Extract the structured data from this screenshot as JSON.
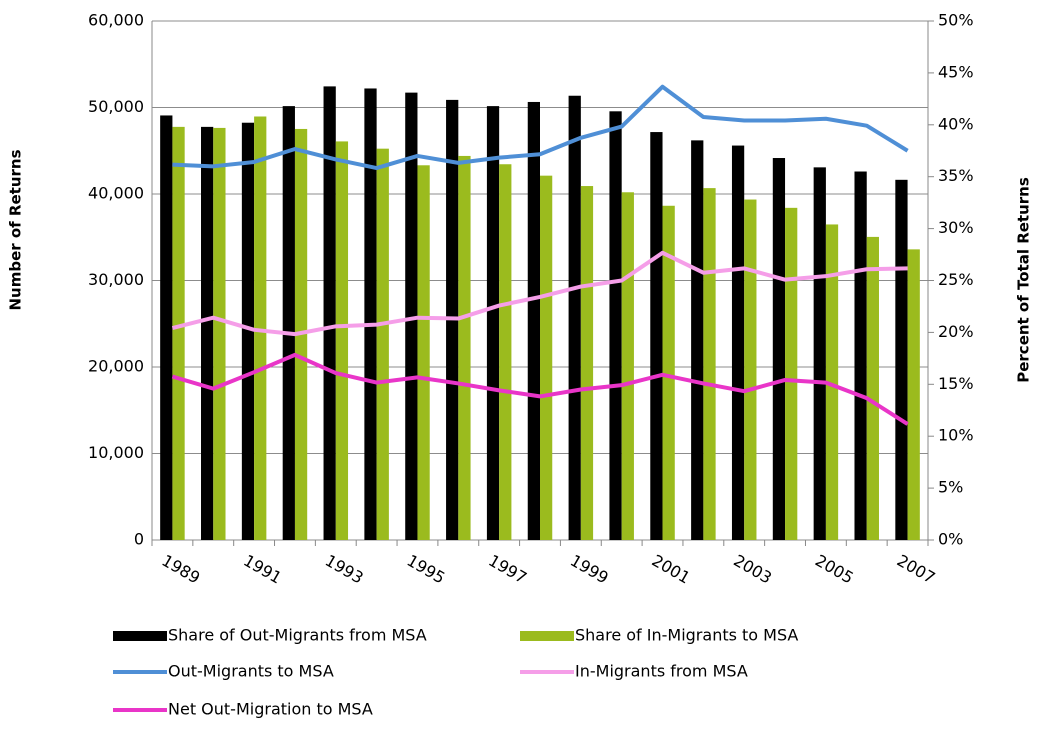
{
  "chart_data": {
    "type": "bar_line",
    "y_label": "Number of Returns",
    "y2_label": "Percent of Total Returns",
    "categories": [
      "1989",
      null,
      "1991",
      null,
      "1993",
      null,
      "1995",
      null,
      "1997",
      null,
      "1999",
      null,
      "2001",
      null,
      "2003",
      null,
      "2005",
      null,
      "2007"
    ],
    "series": [
      {
        "name": "Share of Out-Migrants from MSA",
        "type": "bar",
        "axis": "y2",
        "color": "#000000",
        "values": [
          40.9,
          39.8,
          40.2,
          41.8,
          43.7,
          43.5,
          43.1,
          42.4,
          41.8,
          42.2,
          42.8,
          41.3,
          39.3,
          38.5,
          38.0,
          36.8,
          35.9,
          35.5,
          34.7
        ]
      },
      {
        "name": "Share of In-Migrants to MSA",
        "type": "bar",
        "axis": "y2",
        "color": "#9bbb1e",
        "values": [
          39.8,
          39.7,
          40.8,
          39.6,
          38.4,
          37.7,
          36.1,
          37.0,
          36.2,
          35.1,
          34.1,
          33.5,
          32.2,
          33.9,
          32.8,
          32.0,
          30.4,
          29.2,
          28.0
        ]
      },
      {
        "name": "Out-Migrants to MSA",
        "type": "line",
        "color": "#4f8fd6",
        "values": [
          43400,
          43200,
          43700,
          45200,
          44000,
          43000,
          44400,
          43600,
          44200,
          44600,
          46500,
          47800,
          52400,
          48900,
          48500,
          48500,
          48700,
          47900,
          45000
        ]
      },
      {
        "name": "In-Migrants from MSA",
        "type": "line",
        "color": "#f59ee8",
        "values": [
          24500,
          25700,
          24300,
          23800,
          24700,
          24900,
          25700,
          25600,
          27100,
          28100,
          29300,
          30000,
          33200,
          30900,
          31400,
          30100,
          30500,
          31300,
          31400
        ]
      },
      {
        "name": "Net Out-Migration to MSA",
        "type": "line",
        "color": "#e935c8",
        "values": [
          18900,
          17500,
          19400,
          21400,
          19300,
          18200,
          18800,
          18100,
          17300,
          16600,
          17400,
          17900,
          19100,
          18100,
          17200,
          18500,
          18200,
          16400,
          13400
        ]
      }
    ],
    "ylim": [
      0,
      60000
    ],
    "yticks": [
      0,
      {
        "value": 10000,
        "label": "10,000"
      },
      {
        "value": 20000,
        "label": "20,000"
      },
      {
        "value": 30000,
        "label": "30,000"
      },
      {
        "value": 40000,
        "label": "40,000"
      },
      {
        "value": 50000,
        "label": "50,000"
      },
      {
        "value": 60000,
        "label": "60,000"
      }
    ],
    "y2lim": [
      0,
      50
    ],
    "y2ticks": [
      {
        "value": 0,
        "label": "0%"
      },
      {
        "value": 5,
        "label": "5%"
      },
      {
        "value": 10,
        "label": "10%"
      },
      {
        "value": 15,
        "label": "15%"
      },
      {
        "value": 20,
        "label": "20%"
      },
      {
        "value": 25,
        "label": "25%"
      },
      {
        "value": 30,
        "label": "30%"
      },
      {
        "value": 35,
        "label": "35%"
      },
      {
        "value": 40,
        "label": "40%"
      },
      {
        "value": 45,
        "label": "45%"
      },
      {
        "value": 50,
        "label": "50%"
      }
    ],
    "grid": true
  }
}
